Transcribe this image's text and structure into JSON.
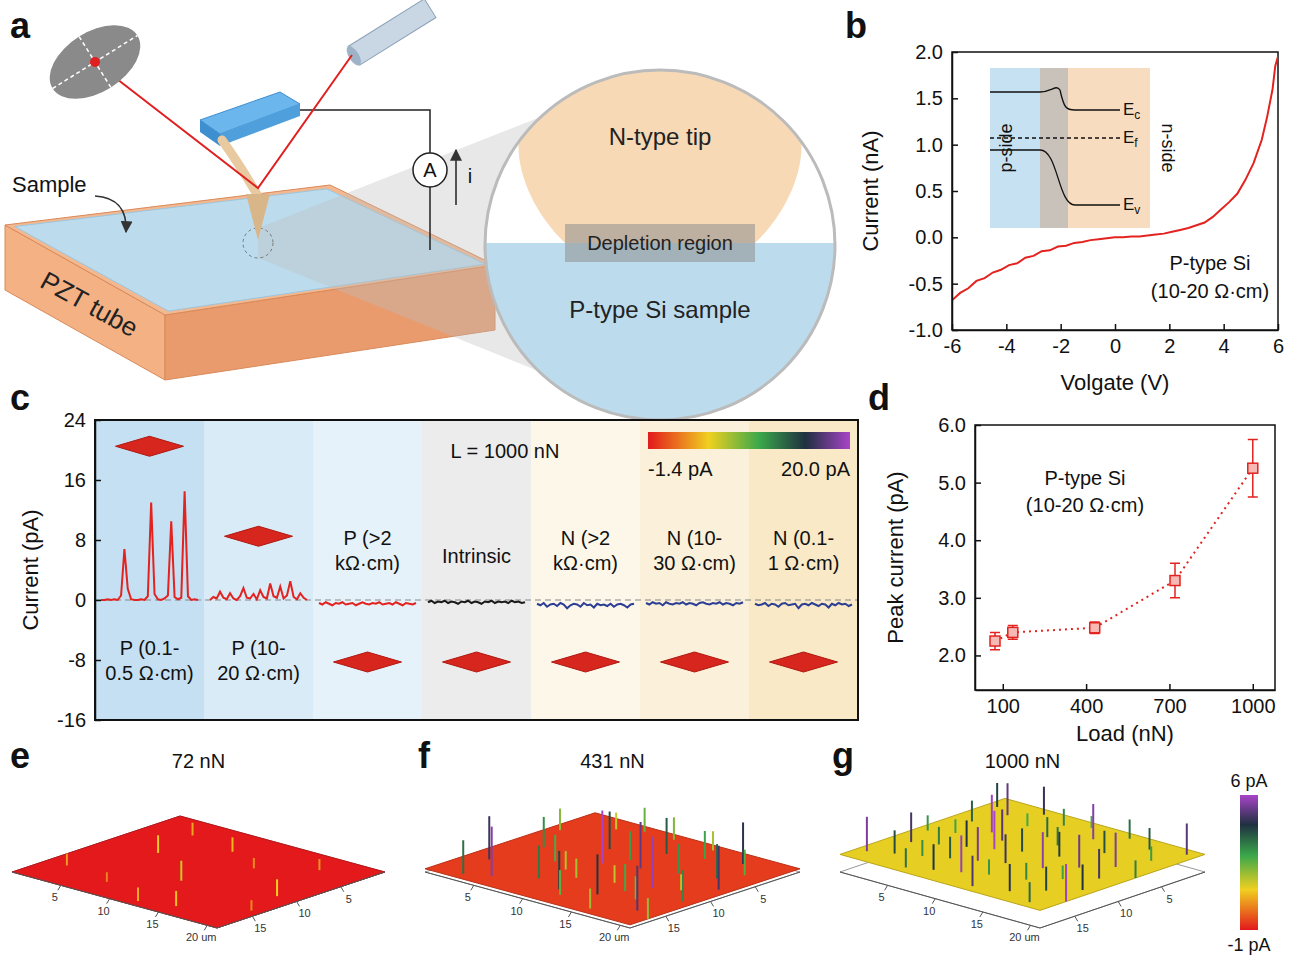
{
  "diagram": {
    "panel": "a",
    "labels": {
      "sample": "Sample",
      "pzt": "PZT tube",
      "ammeter": "A",
      "current": "i",
      "tip": "N-type tip",
      "depletion": "Depletion region",
      "substrate": "P-type Si sample"
    }
  },
  "chart_data": [
    {
      "panel": "b",
      "type": "line",
      "xlabel": "Volgate (V)",
      "ylabel": "Current (nA)",
      "color": "#e3231f",
      "xlim": [
        -6,
        6
      ],
      "ylim": [
        -1,
        2
      ],
      "xticks": [
        -6,
        -4,
        -2,
        0,
        2,
        4,
        6
      ],
      "yticks": [
        {
          "value": -1,
          "label": "-1.0"
        },
        -0.5,
        {
          "value": 0,
          "label": "0.0"
        },
        0.5,
        {
          "value": 1,
          "label": "1.0"
        },
        1.5,
        {
          "value": 2,
          "label": "2.0"
        }
      ],
      "x": [
        -6,
        -5.7,
        -5.4,
        -5.1,
        -4.8,
        -4.5,
        -4.2,
        -3.9,
        -3.6,
        -3.3,
        -3,
        -2.7,
        -2.4,
        -2.1,
        -1.8,
        -1.5,
        -1.2,
        -0.9,
        -0.6,
        -0.3,
        0,
        0.3,
        0.6,
        0.9,
        1.2,
        1.5,
        1.8,
        2.1,
        2.4,
        2.7,
        3,
        3.3,
        3.6,
        3.9,
        4.2,
        4.5,
        4.8,
        5.1,
        5.4,
        5.6,
        5.8,
        5.9,
        6
      ],
      "values": [
        -0.68,
        -0.6,
        -0.55,
        -0.47,
        -0.44,
        -0.38,
        -0.35,
        -0.3,
        -0.28,
        -0.22,
        -0.2,
        -0.15,
        -0.14,
        -0.1,
        -0.09,
        -0.06,
        -0.05,
        -0.03,
        -0.02,
        -0.01,
        0,
        0,
        0.01,
        0.01,
        0.02,
        0.03,
        0.04,
        0.06,
        0.08,
        0.1,
        0.13,
        0.16,
        0.22,
        0.3,
        0.38,
        0.47,
        0.62,
        0.8,
        1.05,
        1.3,
        1.6,
        1.85,
        1.95
      ],
      "annotation": [
        "P-type Si",
        "(10-20 Ω·cm)"
      ],
      "inset": {
        "left_label": "p-side",
        "right_label": "n-side",
        "levels": [
          "Ec",
          "Ef",
          "Ev"
        ]
      }
    },
    {
      "panel": "c",
      "type": "line",
      "ylabel": "Current (pA)",
      "ylim": [
        -16,
        24
      ],
      "yticks": [
        -16,
        -8,
        0,
        8,
        16,
        24
      ],
      "tick_labels": "y",
      "annotation": "L = 1000 nN",
      "colorbar": {
        "range": [
          -1.4,
          20.0
        ],
        "ticks": [
          {
            "value": -1.4,
            "label": "-1.4 pA"
          },
          {
            "value": 20,
            "label": "20.0 pA"
          }
        ]
      },
      "series": [
        {
          "name": "P (0.1-0.5 Ω·cm)",
          "color": "#e3231f",
          "values": [
            0,
            0,
            0.1,
            0,
            0.1,
            0,
            0.6,
            6.8,
            1.5,
            0.1,
            0,
            0,
            0.1,
            0,
            0.5,
            13,
            0.8,
            0.1,
            0,
            0.2,
            0.6,
            10.5,
            0.4,
            0.1,
            0.3,
            14.5,
            0.5,
            0,
            0.1,
            0
          ]
        },
        {
          "name": "P (10-20 Ω·cm)",
          "color": "#e3231f",
          "values": [
            0,
            0.4,
            0.2,
            1.1,
            0.3,
            0.1,
            0.9,
            0.2,
            0,
            0.5,
            1.6,
            0.3,
            0.2,
            0.8,
            0.1,
            1.3,
            0.4,
            0.2,
            2.2,
            0.5,
            0.3,
            1.8,
            0.2,
            0.6,
            2.5,
            0.4,
            0.1,
            0.9,
            0.3,
            0
          ]
        },
        {
          "name": "P (>2 kΩ·cm)",
          "color": "#e3231f",
          "values": [
            -0.4,
            -0.6,
            -0.3,
            -0.5,
            -0.7,
            -0.4,
            -0.5,
            -0.3,
            -0.6,
            -0.5,
            -0.4,
            -0.7,
            -0.5,
            -0.3,
            -0.5,
            -0.6,
            -0.4,
            -0.5,
            -0.3,
            -0.6,
            -0.5,
            -0.4,
            -0.6,
            -0.3,
            -0.5,
            -0.7,
            -0.4,
            -0.5,
            -0.6,
            -0.4
          ]
        },
        {
          "name": "Intrinsic",
          "color": "#1a1a1a",
          "values": [
            -0.3,
            -0.1,
            -0.4,
            -0.2,
            -0.3,
            -0.1,
            -0.4,
            -0.2,
            -0.3,
            -0.5,
            -0.2,
            -0.3,
            -0.1,
            -0.4,
            -0.2,
            -0.3,
            -0.5,
            -0.2,
            -0.3,
            -0.1,
            -0.4,
            -0.2,
            -0.3,
            -0.2,
            -0.4,
            -0.1,
            -0.3,
            -0.2,
            -0.4,
            -0.3
          ]
        },
        {
          "name": "N (>2 kΩ·cm)",
          "color": "#2c3e94",
          "values": [
            -0.5,
            -0.7,
            -0.4,
            -0.9,
            -0.6,
            -0.5,
            -0.8,
            -0.4,
            -0.6,
            -1.1,
            -0.7,
            -0.5,
            -0.6,
            -0.9,
            -0.4,
            -0.7,
            -0.6,
            -1,
            -0.5,
            -0.7,
            -0.6,
            -0.8,
            -0.5,
            -0.9,
            -0.6,
            -0.5,
            -0.7,
            -1,
            -0.6,
            -0.5
          ]
        },
        {
          "name": "N (10-30 Ω·cm)",
          "color": "#2c3e94",
          "values": [
            -0.4,
            -0.6,
            -0.3,
            -0.5,
            -0.4,
            -0.7,
            -0.3,
            -0.5,
            -0.6,
            -0.4,
            -0.5,
            -0.3,
            -0.6,
            -0.4,
            -0.5,
            -0.7,
            -0.4,
            -0.3,
            -0.5,
            -0.6,
            -0.4,
            -0.5,
            -0.3,
            -0.6,
            -0.4,
            -0.5,
            -0.7,
            -0.4,
            -0.5,
            -0.3
          ]
        },
        {
          "name": "N (0.1-1 Ω·cm)",
          "color": "#2c3e94",
          "values": [
            -0.5,
            -0.7,
            -0.6,
            -0.4,
            -0.8,
            -0.5,
            -0.6,
            -0.9,
            -0.5,
            -0.4,
            -0.7,
            -0.6,
            -0.5,
            -1.1,
            -0.6,
            -0.5,
            -0.7,
            -0.4,
            -0.6,
            -0.8,
            -0.5,
            -0.6,
            -1,
            -0.5,
            -0.7,
            -0.4,
            -0.6,
            -0.5,
            -0.8,
            -0.6
          ]
        }
      ]
    },
    {
      "panel": "d",
      "type": "scatter",
      "xlabel": "Load (nN)",
      "ylabel": "Peak current (pA)",
      "color": "#e3231f",
      "marker": "square",
      "line_style": "dotted",
      "xlim": [
        0,
        1080
      ],
      "ylim": [
        1.4,
        6
      ],
      "xticks": [
        100,
        400,
        700,
        1000
      ],
      "yticks": [
        {
          "value": 2,
          "label": "2.0"
        },
        {
          "value": 3,
          "label": "3.0"
        },
        {
          "value": 4,
          "label": "4.0"
        },
        {
          "value": 5,
          "label": "5.0"
        },
        {
          "value": 6,
          "label": "6.0"
        }
      ],
      "x": [
        72,
        136,
        431,
        720,
        1000
      ],
      "values": [
        2.25,
        2.4,
        2.48,
        3.3,
        5.25
      ],
      "errors": [
        0.15,
        0.12,
        0.1,
        0.3,
        0.5
      ],
      "annotation": [
        "P-type Si",
        "(10-20 Ω·cm)"
      ]
    },
    {
      "panel": "e",
      "type": "surface3d",
      "title": "72 nN",
      "xlim": [
        0,
        21
      ],
      "ylim": [
        0,
        19
      ],
      "xticks": [
        5,
        10,
        15,
        {
          "value": 20,
          "label": "20 um"
        }
      ],
      "yticks": [
        5,
        10,
        15
      ],
      "base_current": -1,
      "spikes": [
        [
          2,
          15,
          0.5
        ],
        [
          5,
          8,
          1.2
        ],
        [
          7,
          16,
          0.2
        ],
        [
          9,
          4,
          0.8
        ],
        [
          11,
          12,
          1.5
        ],
        [
          13,
          6,
          0.3
        ],
        [
          15,
          17,
          0.9
        ],
        [
          17,
          3,
          0.4
        ],
        [
          19,
          10,
          1.1
        ],
        [
          4,
          3,
          0.6
        ],
        [
          12,
          18,
          0.7
        ],
        [
          20,
          14,
          0.3
        ]
      ]
    },
    {
      "panel": "f",
      "type": "surface3d",
      "title": "431 nN",
      "xlim": [
        0,
        21
      ],
      "ylim": [
        0,
        19
      ],
      "xticks": [
        5,
        10,
        15,
        {
          "value": 20,
          "label": "20 um"
        }
      ],
      "yticks": [
        5,
        10,
        15
      ],
      "base_current": -0.6,
      "spikes": [
        [
          1,
          5,
          2.1
        ],
        [
          2,
          14,
          4.8
        ],
        [
          3,
          9,
          3.2
        ],
        [
          4,
          2,
          1.5
        ],
        [
          5,
          17,
          5.6
        ],
        [
          6,
          11,
          2.7
        ],
        [
          7,
          6,
          4.1
        ],
        [
          8,
          15,
          3.5
        ],
        [
          9,
          1,
          2.2
        ],
        [
          9,
          9,
          6
        ],
        [
          10,
          13,
          1.8
        ],
        [
          11,
          4,
          3.9
        ],
        [
          12,
          17,
          2.5
        ],
        [
          12,
          8,
          5.2
        ],
        [
          13,
          12,
          1.6
        ],
        [
          14,
          3,
          2.9
        ],
        [
          14,
          15,
          4.4
        ],
        [
          15,
          7,
          3.1
        ],
        [
          16,
          11,
          5.8
        ],
        [
          16,
          18,
          1.9
        ],
        [
          17,
          2,
          4.6
        ],
        [
          17,
          14,
          2.3
        ],
        [
          18,
          6,
          3.7
        ],
        [
          18,
          10,
          1.4
        ],
        [
          19,
          16,
          5
        ],
        [
          19,
          4,
          2.6
        ],
        [
          20,
          12,
          3.3
        ],
        [
          20,
          8,
          4.9
        ],
        [
          21,
          17,
          2
        ],
        [
          3,
          18,
          3.6
        ],
        [
          6,
          1,
          2.4
        ],
        [
          8,
          12,
          1.7
        ],
        [
          10,
          7,
          3
        ],
        [
          11,
          16,
          4.2
        ],
        [
          13,
          1,
          1.8
        ],
        [
          15,
          13,
          2.8
        ]
      ]
    },
    {
      "panel": "g",
      "type": "surface3d",
      "title": "1000 nN",
      "xlim": [
        0,
        21
      ],
      "ylim": [
        0,
        19
      ],
      "xticks": [
        5,
        10,
        15,
        {
          "value": 20,
          "label": "20 um"
        }
      ],
      "yticks": [
        5,
        10,
        15
      ],
      "base_current": 1.2,
      "colorbar": {
        "range": [
          -1,
          6
        ],
        "ticks": [
          {
            "value": 6,
            "label": "6 pA"
          },
          {
            "value": -1,
            "label": "-1 pA"
          }
        ]
      },
      "spikes": [
        [
          1,
          2,
          4.2
        ],
        [
          1,
          10,
          3.1
        ],
        [
          1,
          17,
          5.5
        ],
        [
          2,
          6,
          3.8
        ],
        [
          2,
          13,
          4.9
        ],
        [
          3,
          3,
          5.2
        ],
        [
          3,
          9,
          2.9
        ],
        [
          3,
          16,
          4.1
        ],
        [
          4,
          12,
          3.4
        ],
        [
          5,
          1,
          4.7
        ],
        [
          5,
          7,
          5.9
        ],
        [
          5,
          15,
          3.2
        ],
        [
          6,
          4,
          2.8
        ],
        [
          6,
          11,
          4.5
        ],
        [
          6,
          18,
          3.6
        ],
        [
          7,
          8,
          5.1
        ],
        [
          7,
          14,
          3.9
        ],
        [
          8,
          2,
          3.3
        ],
        [
          8,
          10,
          6
        ],
        [
          8,
          17,
          4.4
        ],
        [
          9,
          5,
          3.7
        ],
        [
          9,
          13,
          5.4
        ],
        [
          10,
          1,
          2.7
        ],
        [
          10,
          9,
          4.1
        ],
        [
          10,
          16,
          5.8
        ],
        [
          11,
          6,
          3.5
        ],
        [
          11,
          12,
          4.8
        ],
        [
          12,
          3,
          5.6
        ],
        [
          12,
          15,
          3.1
        ],
        [
          13,
          8,
          4.3
        ],
        [
          13,
          18,
          5
        ],
        [
          14,
          1,
          3.6
        ],
        [
          14,
          11,
          5.7
        ],
        [
          15,
          5,
          4
        ],
        [
          15,
          14,
          3.3
        ],
        [
          16,
          9,
          5.3
        ],
        [
          16,
          17,
          4.6
        ],
        [
          17,
          2,
          3.9
        ],
        [
          17,
          12,
          2.9
        ],
        [
          18,
          7,
          5.5
        ],
        [
          18,
          15,
          4.2
        ],
        [
          19,
          4,
          3
        ],
        [
          19,
          10,
          4.9
        ],
        [
          19,
          18,
          3.7
        ],
        [
          20,
          1,
          5.1
        ],
        [
          20,
          13,
          4.4
        ],
        [
          21,
          8,
          3.4
        ],
        [
          21,
          16,
          5.9
        ]
      ]
    }
  ]
}
